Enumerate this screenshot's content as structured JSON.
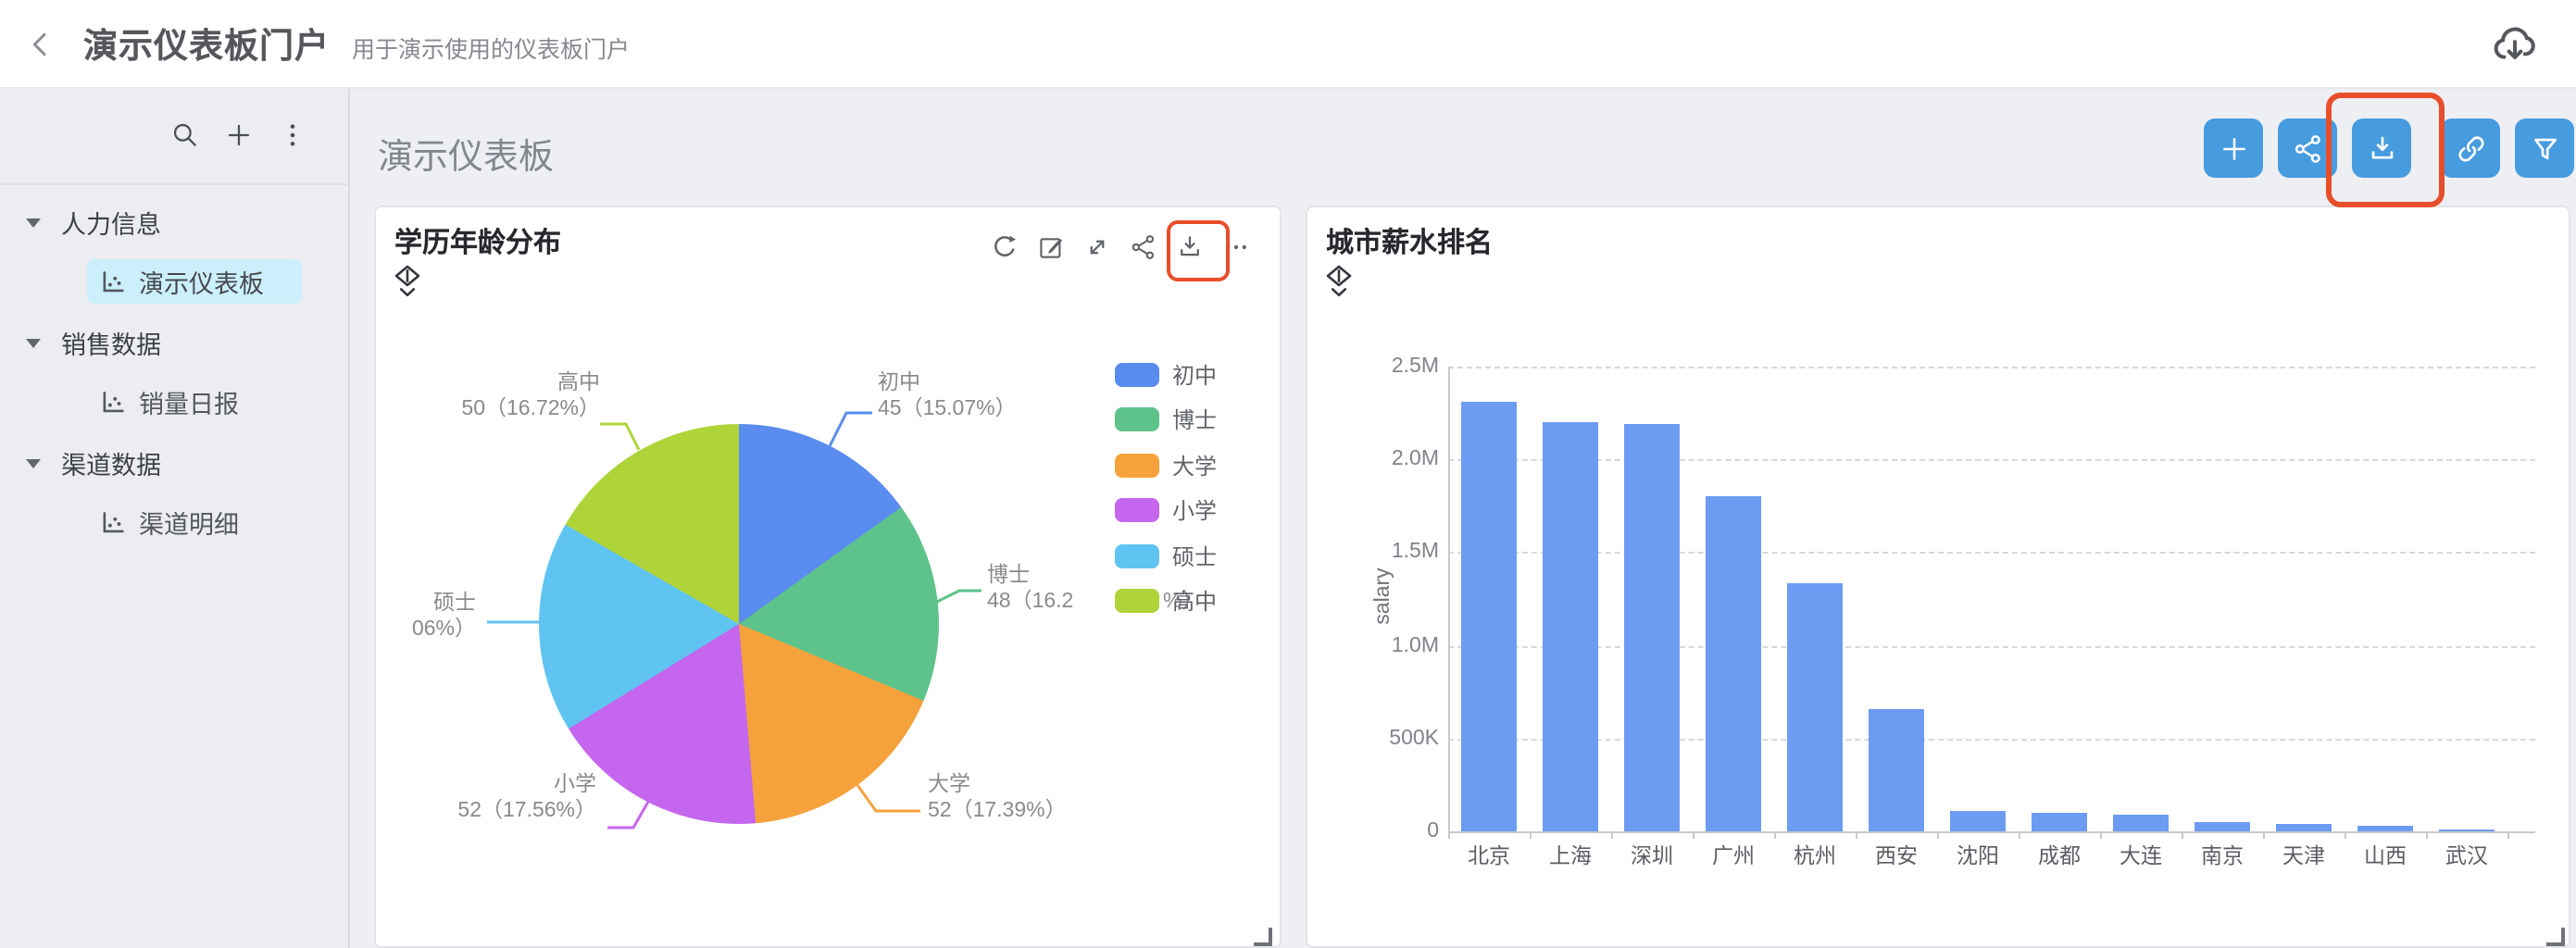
{
  "header": {
    "title": "演示仪表板门户",
    "subtitle": "用于演示使用的仪表板门户"
  },
  "sidebar": {
    "tools": [
      "search",
      "plus",
      "more"
    ],
    "groups": [
      {
        "label": "人力信息",
        "expanded": true,
        "items": [
          {
            "label": "演示仪表板",
            "selected": true
          }
        ]
      },
      {
        "label": "销售数据",
        "expanded": true,
        "items": [
          {
            "label": "销量日报",
            "selected": false
          }
        ]
      },
      {
        "label": "渠道数据",
        "expanded": true,
        "items": [
          {
            "label": "渠道明细",
            "selected": false
          }
        ]
      }
    ]
  },
  "main": {
    "title": "演示仪表板",
    "toolbar": [
      {
        "name": "add"
      },
      {
        "name": "share"
      },
      {
        "name": "download",
        "highlighted": true
      },
      {
        "name": "link"
      },
      {
        "name": "filter"
      }
    ]
  },
  "card1_tools": [
    "refresh",
    "edit",
    "expand",
    "share",
    "download",
    "more"
  ],
  "card1_highlighted_tool": "download",
  "colors": {
    "accent_blue": "#479bdf",
    "highlight_red": "#e84e2b",
    "selected_item_bg": "#cbeffb",
    "bar_blue": "#6c9cf2",
    "card_bg": "#ffffff",
    "page_bg": "#ebedf0"
  },
  "chart_data": [
    {
      "type": "pie",
      "title": "学历年龄分布",
      "legend_position": "right",
      "slices": [
        {
          "name": "初中",
          "value": 45,
          "pct": 15.07,
          "color": "#5a8cf0",
          "label": [
            "初中",
            "45（15.07%）"
          ]
        },
        {
          "name": "博士",
          "value": 48,
          "pct": 16.2,
          "color": "#5ec28b",
          "label": [
            "博士",
            "48（16.2",
            "%）"
          ]
        },
        {
          "name": "大学",
          "value": 52,
          "pct": 17.39,
          "color": "#f5a23d",
          "label": [
            "大学",
            "52（17.39%）"
          ]
        },
        {
          "name": "小学",
          "value": 52,
          "pct": 17.56,
          "color": "#c466ee",
          "label": [
            "小学",
            "52（17.56%）"
          ]
        },
        {
          "name": "硕士",
          "value": null,
          "pct": 17.06,
          "color": "#5fc4f2",
          "label": [
            "硕士",
            "06%）"
          ]
        },
        {
          "name": "高中",
          "value": 50,
          "pct": 16.72,
          "color": "#afd43a",
          "label": [
            "高中",
            "50（16.72%）"
          ]
        }
      ]
    },
    {
      "type": "bar",
      "title": "城市薪水排名",
      "ylabel": "salary",
      "yticks": [
        "2.5M",
        "2.0M",
        "1.5M",
        "1.0M",
        "500K",
        "0"
      ],
      "ylim": [
        0,
        2500000
      ],
      "grid": "dashed",
      "categories": [
        "北京",
        "上海",
        "深圳",
        "广州",
        "杭州",
        "西安",
        "沈阳",
        "成都",
        "大连",
        "南京",
        "天津",
        "山西",
        "武汉"
      ],
      "values": [
        2310000,
        2200000,
        2190000,
        1800000,
        1330000,
        660000,
        105000,
        100000,
        92000,
        45000,
        42000,
        28000,
        8000
      ]
    }
  ]
}
